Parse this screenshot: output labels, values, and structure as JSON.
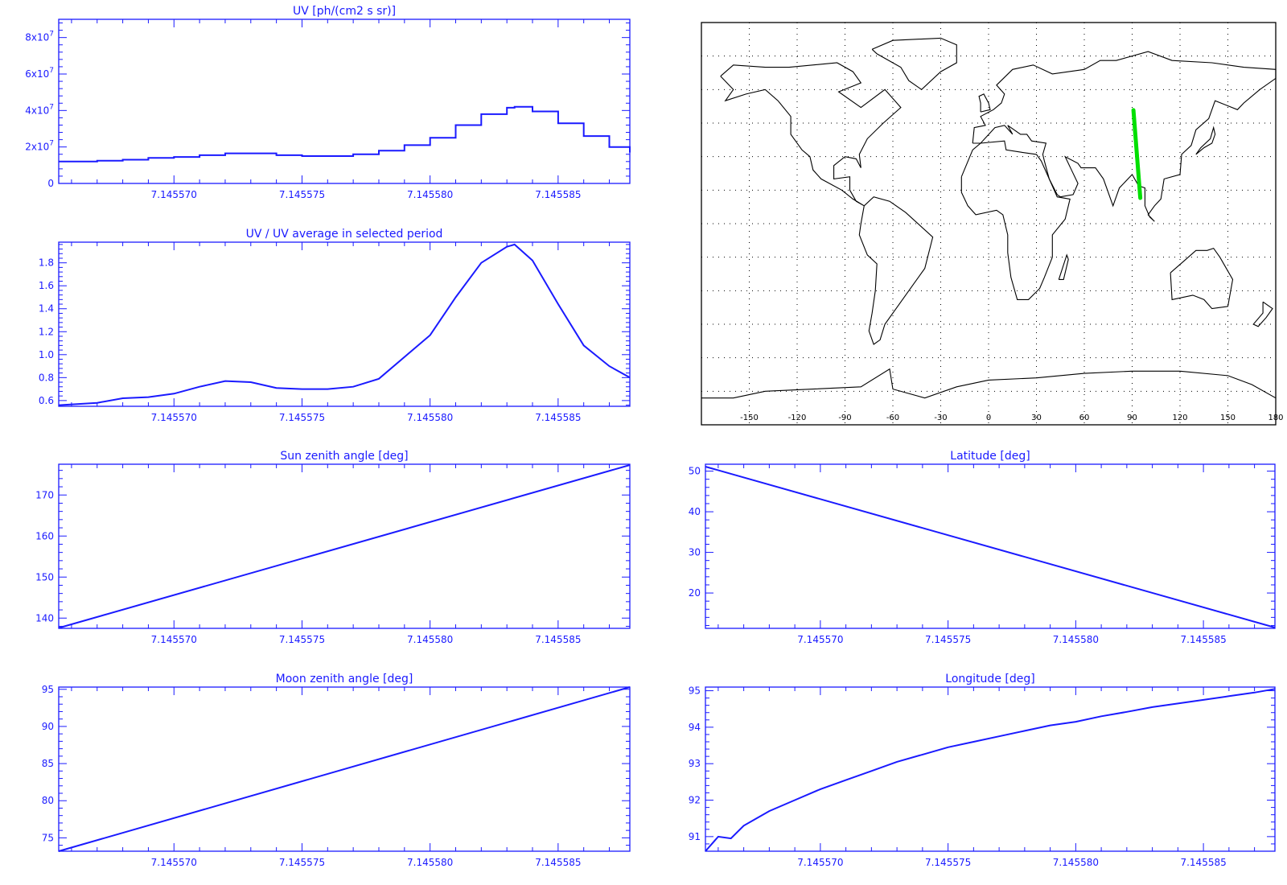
{
  "colors": {
    "axis": "#1a1aff",
    "line": "#1a1aff",
    "map": "#000000",
    "track": "#00e000",
    "grid": "#000000"
  },
  "x_ticks": [
    "7.145570",
    "7.145575",
    "7.145580",
    "7.145585"
  ],
  "map": {
    "type": "map",
    "projection": "equirectangular",
    "xticks": [
      "-150",
      "-120",
      "-90",
      "-60",
      "-30",
      "0",
      "30",
      "60",
      "90",
      "120",
      "150",
      "180"
    ],
    "grid": "dotted, 30 deg",
    "track": {
      "color": "green",
      "lon": [
        90.8,
        95.1
      ],
      "lat": [
        50.8,
        11.5
      ]
    }
  },
  "chart_data": [
    {
      "type": "line",
      "title": "UV [ph/(cm2 s sr)]",
      "xlim": [
        7.1455655,
        7.1455878
      ],
      "xticks": [
        7.14557,
        7.145575,
        7.14558,
        7.145585
      ],
      "ylim": [
        0,
        90000000.0
      ],
      "yticks": [
        {
          "v": 0,
          "label": "0"
        },
        {
          "v": 20000000.0,
          "label": "2x10",
          "exp": "7"
        },
        {
          "v": 40000000.0,
          "label": "4x10",
          "exp": "7"
        },
        {
          "v": 60000000.0,
          "label": "6x10",
          "exp": "7"
        },
        {
          "v": 80000000.0,
          "label": "8x10",
          "exp": "7"
        }
      ],
      "x": [
        7.1455655,
        7.145567,
        7.145568,
        7.145569,
        7.14557,
        7.145571,
        7.145572,
        7.145573,
        7.145574,
        7.145575,
        7.145576,
        7.145577,
        7.145578,
        7.145579,
        7.14558,
        7.145581,
        7.145582,
        7.145583,
        7.1455833,
        7.145584,
        7.145585,
        7.145586,
        7.145587,
        7.1455878
      ],
      "y": [
        12000000.0,
        12500000.0,
        13000000.0,
        14000000.0,
        14500000.0,
        15500000.0,
        16500000.0,
        16500000.0,
        15500000.0,
        15000000.0,
        15000000.0,
        16000000.0,
        18000000.0,
        21000000.0,
        25000000.0,
        32000000.0,
        38000000.0,
        41500000.0,
        42000000.0,
        39500000.0,
        33000000.0,
        26000000.0,
        20000000.0,
        17000000.0
      ],
      "step": true
    },
    {
      "type": "line",
      "title": "UV / UV average in selected period",
      "xlim": [
        7.1455655,
        7.1455878
      ],
      "xticks": [
        7.14557,
        7.145575,
        7.14558,
        7.145585
      ],
      "ylim": [
        0.55,
        1.98
      ],
      "yticks": [
        {
          "v": 0.6,
          "label": "0.6"
        },
        {
          "v": 0.8,
          "label": "0.8"
        },
        {
          "v": 1.0,
          "label": "1.0"
        },
        {
          "v": 1.2,
          "label": "1.2"
        },
        {
          "v": 1.4,
          "label": "1.4"
        },
        {
          "v": 1.6,
          "label": "1.6"
        },
        {
          "v": 1.8,
          "label": "1.8"
        }
      ],
      "x": [
        7.1455655,
        7.145567,
        7.145568,
        7.145569,
        7.14557,
        7.145571,
        7.145572,
        7.145573,
        7.145574,
        7.145575,
        7.145576,
        7.145577,
        7.145578,
        7.145579,
        7.14558,
        7.145581,
        7.145582,
        7.145583,
        7.1455833,
        7.145584,
        7.145585,
        7.145586,
        7.145587,
        7.1455878
      ],
      "y": [
        0.56,
        0.58,
        0.62,
        0.63,
        0.66,
        0.72,
        0.77,
        0.76,
        0.71,
        0.7,
        0.7,
        0.72,
        0.79,
        0.98,
        1.17,
        1.5,
        1.8,
        1.94,
        1.96,
        1.82,
        1.44,
        1.08,
        0.9,
        0.8
      ]
    },
    {
      "type": "line",
      "title": "Sun zenith angle [deg]",
      "xlim": [
        7.1455655,
        7.1455878
      ],
      "xticks": [
        7.14557,
        7.145575,
        7.14558,
        7.145585
      ],
      "ylim": [
        137.5,
        177.5
      ],
      "yticks": [
        {
          "v": 140,
          "label": "140"
        },
        {
          "v": 150,
          "label": "150"
        },
        {
          "v": 160,
          "label": "160"
        },
        {
          "v": 170,
          "label": "170"
        }
      ],
      "x": [
        7.1455655,
        7.1455878
      ],
      "y": [
        137.6,
        177.3
      ]
    },
    {
      "type": "line",
      "title": "Latitude [deg]",
      "xlim": [
        7.1455655,
        7.1455878
      ],
      "xticks": [
        7.14557,
        7.145575,
        7.14558,
        7.145585
      ],
      "ylim": [
        11.3,
        51.7
      ],
      "yticks": [
        {
          "v": 20,
          "label": "20"
        },
        {
          "v": 30,
          "label": "30"
        },
        {
          "v": 40,
          "label": "40"
        },
        {
          "v": 50,
          "label": "50"
        }
      ],
      "x": [
        7.1455655,
        7.1455878
      ],
      "y": [
        51.1,
        11.5
      ]
    },
    {
      "type": "line",
      "title": "Moon zenith angle [deg]",
      "xlim": [
        7.1455655,
        7.1455878
      ],
      "xticks": [
        7.14557,
        7.145575,
        7.14558,
        7.145585
      ],
      "ylim": [
        73.2,
        95.3
      ],
      "yticks": [
        {
          "v": 75,
          "label": "75"
        },
        {
          "v": 80,
          "label": "80"
        },
        {
          "v": 85,
          "label": "85"
        },
        {
          "v": 90,
          "label": "90"
        },
        {
          "v": 95,
          "label": "95"
        }
      ],
      "x": [
        7.1455655,
        7.1455878
      ],
      "y": [
        73.2,
        95.3
      ]
    },
    {
      "type": "line",
      "title": "Longitude [deg]",
      "xlim": [
        7.1455655,
        7.1455878
      ],
      "xticks": [
        7.14557,
        7.145575,
        7.14558,
        7.145585
      ],
      "ylim": [
        90.6,
        95.1
      ],
      "yticks": [
        {
          "v": 91,
          "label": "91"
        },
        {
          "v": 92,
          "label": "92"
        },
        {
          "v": 93,
          "label": "93"
        },
        {
          "v": 94,
          "label": "94"
        },
        {
          "v": 95,
          "label": "95"
        }
      ],
      "x": [
        7.1455655,
        7.145566,
        7.1455665,
        7.145567,
        7.145568,
        7.145569,
        7.14557,
        7.145571,
        7.145572,
        7.145573,
        7.145574,
        7.145575,
        7.145576,
        7.145577,
        7.145578,
        7.145579,
        7.14558,
        7.145581,
        7.145582,
        7.145583,
        7.145584,
        7.145585,
        7.145586,
        7.145587,
        7.1455878
      ],
      "y": [
        90.6,
        91.0,
        90.95,
        91.3,
        91.7,
        92.0,
        92.3,
        92.55,
        92.8,
        93.05,
        93.25,
        93.45,
        93.6,
        93.75,
        93.9,
        94.05,
        94.15,
        94.3,
        94.42,
        94.55,
        94.65,
        94.75,
        94.85,
        94.95,
        95.05
      ]
    }
  ]
}
